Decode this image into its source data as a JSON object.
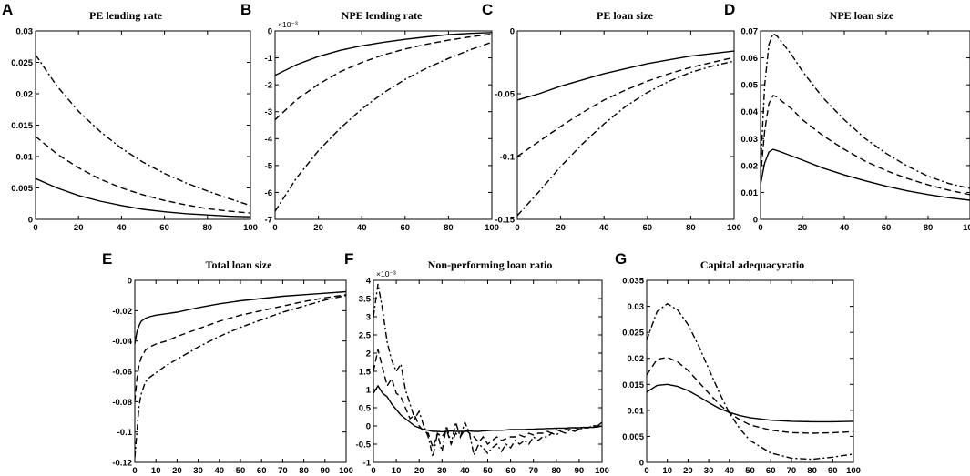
{
  "figure": {
    "line_styles": [
      {
        "name": "solid",
        "dash": ""
      },
      {
        "name": "dashed",
        "dash": "7,4"
      },
      {
        "name": "dash-dot",
        "dash": "7,3,2,3"
      }
    ]
  },
  "chart_data": [
    {
      "id": "A",
      "letter": "A",
      "type": "line",
      "title": "PE lending rate",
      "xlim": [
        0,
        100
      ],
      "ylim": [
        0,
        0.03
      ],
      "xticks": [
        0,
        20,
        40,
        60,
        80,
        100
      ],
      "xtick_labels": [
        "0",
        "20",
        "40",
        "60",
        "80",
        "100"
      ],
      "yticks": [
        0,
        0.005,
        0.01,
        0.015,
        0.02,
        0.025,
        0.03
      ],
      "ytick_labels": [
        "0",
        "0.005",
        "0.01",
        "0.015",
        "0.02",
        "0.025",
        "0.03"
      ],
      "sci_label": "",
      "x": [
        0,
        10,
        20,
        30,
        40,
        50,
        60,
        70,
        80,
        90,
        100
      ],
      "series": [
        {
          "name": "solid",
          "style": "solid",
          "values": [
            0.0065,
            0.005,
            0.0038,
            0.0029,
            0.0022,
            0.0016,
            0.0012,
            0.0009,
            0.0007,
            0.0005,
            0.0004
          ]
        },
        {
          "name": "dashed",
          "style": "dashed",
          "values": [
            0.0132,
            0.0104,
            0.0082,
            0.0064,
            0.005,
            0.0039,
            0.003,
            0.0023,
            0.0017,
            0.0013,
            0.001
          ]
        },
        {
          "name": "dash-dot",
          "style": "dash-dot",
          "values": [
            0.0262,
            0.0212,
            0.0172,
            0.014,
            0.0113,
            0.0091,
            0.0073,
            0.0058,
            0.0045,
            0.0033,
            0.0022
          ]
        }
      ]
    },
    {
      "id": "B",
      "letter": "B",
      "type": "line",
      "title": "NPE lending rate",
      "xlim": [
        0,
        100
      ],
      "ylim": [
        -7,
        0
      ],
      "xticks": [
        0,
        20,
        40,
        60,
        80,
        100
      ],
      "xtick_labels": [
        "0",
        "20",
        "40",
        "60",
        "80",
        "100"
      ],
      "yticks": [
        -7,
        -6,
        -5,
        -4,
        -3,
        -2,
        -1,
        0
      ],
      "ytick_labels": [
        "-7",
        "-6",
        "-5",
        "-4",
        "-3",
        "-2",
        "-1",
        "0"
      ],
      "sci_label": "×10⁻³",
      "x": [
        0,
        10,
        20,
        30,
        40,
        50,
        60,
        70,
        80,
        90,
        100
      ],
      "series": [
        {
          "name": "solid",
          "style": "solid",
          "values": [
            -1.65,
            -1.25,
            -0.95,
            -0.72,
            -0.55,
            -0.42,
            -0.31,
            -0.22,
            -0.14,
            -0.09,
            -0.06
          ]
        },
        {
          "name": "dashed",
          "style": "dashed",
          "values": [
            -3.3,
            -2.55,
            -1.98,
            -1.52,
            -1.17,
            -0.89,
            -0.67,
            -0.49,
            -0.34,
            -0.22,
            -0.12
          ]
        },
        {
          "name": "dash-dot",
          "style": "dash-dot",
          "values": [
            -6.7,
            -5.45,
            -4.45,
            -3.62,
            -2.9,
            -2.3,
            -1.8,
            -1.38,
            -1.02,
            -0.7,
            -0.42
          ]
        }
      ]
    },
    {
      "id": "C",
      "letter": "C",
      "type": "line",
      "title": "PE loan size",
      "xlim": [
        0,
        100
      ],
      "ylim": [
        -0.15,
        0
      ],
      "xticks": [
        0,
        20,
        40,
        60,
        80,
        100
      ],
      "xtick_labels": [
        "0",
        "20",
        "40",
        "60",
        "80",
        "100"
      ],
      "yticks": [
        -0.15,
        -0.1,
        -0.05,
        0
      ],
      "ytick_labels": [
        "-0.15",
        "-0.1",
        "-0.05",
        "0"
      ],
      "sci_label": "",
      "x": [
        0,
        10,
        20,
        30,
        40,
        50,
        60,
        70,
        80,
        90,
        100
      ],
      "series": [
        {
          "name": "solid",
          "style": "solid",
          "values": [
            -0.055,
            -0.05,
            -0.044,
            -0.039,
            -0.034,
            -0.03,
            -0.026,
            -0.023,
            -0.02,
            -0.018,
            -0.016
          ]
        },
        {
          "name": "dashed",
          "style": "dashed",
          "values": [
            -0.1,
            -0.088,
            -0.076,
            -0.065,
            -0.055,
            -0.047,
            -0.04,
            -0.034,
            -0.029,
            -0.025,
            -0.021
          ]
        },
        {
          "name": "dash-dot",
          "style": "dash-dot",
          "values": [
            -0.147,
            -0.128,
            -0.108,
            -0.09,
            -0.074,
            -0.06,
            -0.049,
            -0.04,
            -0.033,
            -0.028,
            -0.024
          ]
        }
      ]
    },
    {
      "id": "D",
      "letter": "D",
      "type": "line",
      "title": "NPE loan size",
      "xlim": [
        0,
        100
      ],
      "ylim": [
        0,
        0.07
      ],
      "xticks": [
        0,
        20,
        40,
        60,
        80,
        100
      ],
      "xtick_labels": [
        "0",
        "20",
        "40",
        "60",
        "80",
        "100"
      ],
      "yticks": [
        0,
        0.01,
        0.02,
        0.03,
        0.04,
        0.05,
        0.06,
        0.07
      ],
      "ytick_labels": [
        "0",
        "0.01",
        "0.02",
        "0.03",
        "0.04",
        "0.05",
        "0.06",
        "0.07"
      ],
      "sci_label": "",
      "x": [
        0,
        2,
        4,
        6,
        8,
        10,
        15,
        20,
        30,
        40,
        50,
        60,
        70,
        80,
        90,
        100
      ],
      "series": [
        {
          "name": "solid",
          "style": "solid",
          "values": [
            0.013,
            0.021,
            0.025,
            0.026,
            0.0255,
            0.025,
            0.0235,
            0.022,
            0.019,
            0.0165,
            0.0143,
            0.0123,
            0.0106,
            0.0092,
            0.008,
            0.0071
          ]
        },
        {
          "name": "dashed",
          "style": "dashed",
          "values": [
            0.016,
            0.033,
            0.043,
            0.046,
            0.0455,
            0.044,
            0.041,
            0.037,
            0.031,
            0.026,
            0.0216,
            0.0181,
            0.0152,
            0.0128,
            0.0108,
            0.0092
          ]
        },
        {
          "name": "dash-dot",
          "style": "dash-dot",
          "values": [
            0.019,
            0.05,
            0.065,
            0.069,
            0.068,
            0.066,
            0.061,
            0.055,
            0.045,
            0.037,
            0.03,
            0.0245,
            0.0198,
            0.016,
            0.0133,
            0.0115
          ]
        }
      ]
    },
    {
      "id": "E",
      "letter": "E",
      "type": "line",
      "title": "Total loan size",
      "xlim": [
        0,
        100
      ],
      "ylim": [
        -0.12,
        0
      ],
      "xticks": [
        0,
        10,
        20,
        30,
        40,
        50,
        60,
        70,
        80,
        90,
        100
      ],
      "xtick_labels": [
        "0",
        "10",
        "20",
        "30",
        "40",
        "50",
        "60",
        "70",
        "80",
        "90",
        "100"
      ],
      "yticks": [
        -0.12,
        -0.1,
        -0.08,
        -0.06,
        -0.04,
        -0.02,
        0
      ],
      "ytick_labels": [
        "-0.12",
        "-0.1",
        "-0.08",
        "-0.06",
        "-0.04",
        "-0.02",
        "0"
      ],
      "sci_label": "",
      "x": [
        0,
        1,
        2,
        3,
        5,
        7,
        10,
        15,
        20,
        30,
        40,
        50,
        60,
        70,
        80,
        90,
        100
      ],
      "series": [
        {
          "name": "solid",
          "style": "solid",
          "values": [
            -0.042,
            -0.034,
            -0.03,
            -0.027,
            -0.025,
            -0.024,
            -0.023,
            -0.022,
            -0.021,
            -0.018,
            -0.0155,
            -0.0135,
            -0.012,
            -0.0105,
            -0.0095,
            -0.0085,
            -0.0075
          ]
        },
        {
          "name": "dashed",
          "style": "dashed",
          "values": [
            -0.08,
            -0.065,
            -0.056,
            -0.051,
            -0.046,
            -0.044,
            -0.042,
            -0.04,
            -0.037,
            -0.032,
            -0.027,
            -0.023,
            -0.02,
            -0.017,
            -0.014,
            -0.0115,
            -0.0095
          ]
        },
        {
          "name": "dash-dot",
          "style": "dash-dot",
          "values": [
            -0.117,
            -0.1,
            -0.083,
            -0.075,
            -0.067,
            -0.064,
            -0.061,
            -0.056,
            -0.052,
            -0.044,
            -0.037,
            -0.031,
            -0.026,
            -0.021,
            -0.017,
            -0.013,
            -0.01
          ]
        }
      ]
    },
    {
      "id": "F",
      "letter": "F",
      "type": "line",
      "title": "Non-performing loan ratio",
      "xlim": [
        0,
        100
      ],
      "ylim": [
        -1,
        4
      ],
      "xticks": [
        0,
        10,
        20,
        30,
        40,
        50,
        60,
        70,
        80,
        90,
        100
      ],
      "xtick_labels": [
        "0",
        "10",
        "20",
        "30",
        "40",
        "50",
        "60",
        "70",
        "80",
        "90",
        "100"
      ],
      "yticks": [
        -1,
        -0.5,
        0,
        0.5,
        1,
        1.5,
        2,
        2.5,
        3,
        3.5,
        4
      ],
      "ytick_labels": [
        "-1",
        "-0.5",
        "0",
        "0.5",
        "1",
        "1.5",
        "2",
        "2.5",
        "3",
        "3.5",
        "4"
      ],
      "sci_label": "×10⁻³",
      "x": [
        0,
        2,
        4,
        6,
        8,
        10,
        12,
        14,
        16,
        18,
        20,
        22,
        24,
        26,
        28,
        30,
        32,
        34,
        36,
        38,
        40,
        42,
        44,
        46,
        48,
        50,
        52,
        54,
        56,
        58,
        60,
        62,
        64,
        66,
        68,
        70,
        72,
        74,
        76,
        78,
        80,
        82,
        84,
        86,
        88,
        90,
        92,
        94,
        96,
        98,
        100
      ],
      "series": [
        {
          "name": "solid",
          "style": "solid",
          "values": [
            0.9,
            1.1,
            0.9,
            0.8,
            0.6,
            0.45,
            0.3,
            0.2,
            0.1,
            0.0,
            -0.05,
            -0.1,
            -0.12,
            -0.15,
            -0.15,
            -0.16,
            -0.15,
            -0.14,
            -0.15,
            -0.15,
            -0.15,
            -0.14,
            -0.15,
            -0.15,
            -0.14,
            -0.13,
            -0.12,
            -0.12,
            -0.12,
            -0.11,
            -0.1,
            -0.1,
            -0.1,
            -0.1,
            -0.09,
            -0.09,
            -0.08,
            -0.08,
            -0.07,
            -0.07,
            -0.06,
            -0.06,
            -0.06,
            -0.05,
            -0.05,
            -0.05,
            -0.04,
            -0.04,
            -0.04,
            -0.03,
            0.0
          ]
        },
        {
          "name": "dashed",
          "style": "dashed",
          "values": [
            1.5,
            2.1,
            1.6,
            1.1,
            1.3,
            0.9,
            0.8,
            0.5,
            0.2,
            0.3,
            0.0,
            -0.15,
            -0.2,
            -0.6,
            -0.2,
            -0.3,
            -0.1,
            -0.5,
            -0.2,
            -0.3,
            -0.1,
            -0.2,
            -0.3,
            -0.45,
            -0.3,
            -0.5,
            -0.4,
            -0.3,
            -0.4,
            -0.35,
            -0.3,
            -0.3,
            -0.25,
            -0.3,
            -0.2,
            -0.25,
            -0.2,
            -0.2,
            -0.15,
            -0.2,
            -0.1,
            -0.15,
            -0.1,
            -0.1,
            -0.05,
            -0.1,
            -0.05,
            -0.05,
            0.0,
            0.0,
            0.05
          ]
        },
        {
          "name": "dash-dot",
          "style": "dash-dot",
          "values": [
            3.0,
            3.9,
            3.2,
            2.3,
            1.8,
            1.5,
            1.7,
            1.0,
            0.6,
            0.2,
            0.4,
            0.0,
            -0.3,
            -0.85,
            -0.2,
            -0.7,
            0.0,
            -0.5,
            0.1,
            -0.3,
            0.1,
            -0.2,
            -0.8,
            -0.5,
            -0.6,
            -0.75,
            -0.6,
            -0.5,
            -0.7,
            -0.5,
            -0.6,
            -0.4,
            -0.5,
            -0.4,
            -0.5,
            -0.3,
            -0.4,
            -0.3,
            -0.3,
            -0.2,
            -0.25,
            -0.15,
            -0.2,
            -0.1,
            -0.15,
            -0.1,
            -0.05,
            -0.05,
            0.0,
            0.0,
            0.1
          ]
        }
      ]
    },
    {
      "id": "G",
      "letter": "G",
      "type": "line",
      "title": "Capital adequacyratio",
      "xlim": [
        0,
        100
      ],
      "ylim": [
        0,
        0.035
      ],
      "xticks": [
        0,
        10,
        20,
        30,
        40,
        50,
        60,
        70,
        80,
        90,
        100
      ],
      "xtick_labels": [
        "0",
        "10",
        "20",
        "30",
        "40",
        "50",
        "60",
        "70",
        "80",
        "90",
        "100"
      ],
      "yticks": [
        0,
        0.005,
        0.01,
        0.015,
        0.02,
        0.025,
        0.03,
        0.035
      ],
      "ytick_labels": [
        "0",
        "0.005",
        "0.01",
        "0.015",
        "0.02",
        "0.025",
        "0.03",
        "0.035"
      ],
      "sci_label": "",
      "x": [
        0,
        5,
        10,
        15,
        20,
        25,
        30,
        35,
        40,
        45,
        50,
        60,
        70,
        80,
        90,
        100
      ],
      "series": [
        {
          "name": "solid",
          "style": "solid",
          "values": [
            0.0135,
            0.0148,
            0.015,
            0.0146,
            0.0138,
            0.0127,
            0.0115,
            0.0104,
            0.0096,
            0.009,
            0.0086,
            0.0081,
            0.0079,
            0.0078,
            0.0078,
            0.0079
          ]
        },
        {
          "name": "dashed",
          "style": "dashed",
          "values": [
            0.0168,
            0.0198,
            0.0202,
            0.0193,
            0.0177,
            0.0155,
            0.0133,
            0.0112,
            0.0095,
            0.0082,
            0.0072,
            0.0062,
            0.0057,
            0.0056,
            0.0057,
            0.0059
          ]
        },
        {
          "name": "dash-dot",
          "style": "dash-dot",
          "values": [
            0.0235,
            0.029,
            0.0305,
            0.0293,
            0.0265,
            0.0225,
            0.018,
            0.0135,
            0.0095,
            0.0065,
            0.0042,
            0.0018,
            0.0008,
            0.0006,
            0.001,
            0.0016
          ]
        }
      ]
    }
  ]
}
